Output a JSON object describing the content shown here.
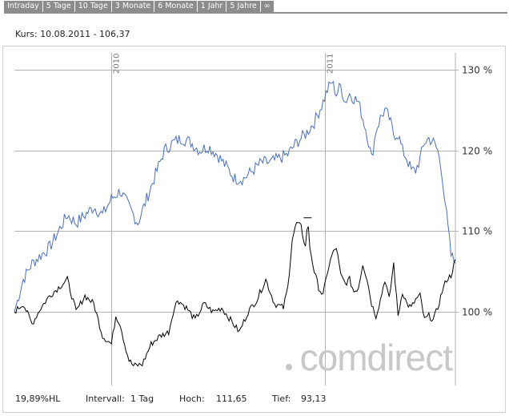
{
  "tabs": [
    {
      "label": "Intraday"
    },
    {
      "label": "5 Tage"
    },
    {
      "label": "10 Tage"
    },
    {
      "label": "3 Monate"
    },
    {
      "label": "6 Monate"
    },
    {
      "label": "1 Jahr"
    },
    {
      "label": "5 Jahre"
    },
    {
      "label": "∞"
    }
  ],
  "header": {
    "kurs": "Kurs: 10.08.2011 - 106,37"
  },
  "footer": {
    "range": "19,89%HL",
    "intervall_label": "Intervall:",
    "intervall_value": "1 Tag",
    "hoch_label": "Hoch:",
    "hoch_value": "111,65",
    "tief_label": "Tief:",
    "tief_value": "93,13"
  },
  "watermark": "comdirect",
  "colors": {
    "blue_series": "#4a6fb5",
    "black_series": "#000000",
    "grid": "#b4b4b4",
    "tab_bg": "#8c8c8c"
  },
  "chart_data": {
    "type": "line",
    "ylim": [
      92,
      132
    ],
    "yticks": [
      {
        "value": 100,
        "label": "100 %"
      },
      {
        "value": 110,
        "label": "110 %"
      },
      {
        "value": 120,
        "label": "120 %"
      },
      {
        "value": 130,
        "label": "130 %"
      }
    ],
    "xticks": [
      {
        "t": 0.22,
        "label": "2010"
      },
      {
        "t": 0.705,
        "label": "2011"
      }
    ],
    "series": [
      {
        "color": "#4a6fb5",
        "points": [
          [
            0,
            100
          ],
          [
            0.02,
            104
          ],
          [
            0.04,
            106
          ],
          [
            0.06,
            107
          ],
          [
            0.08,
            108
          ],
          [
            0.1,
            110
          ],
          [
            0.12,
            112
          ],
          [
            0.14,
            111
          ],
          [
            0.16,
            112
          ],
          [
            0.18,
            113
          ],
          [
            0.2,
            112
          ],
          [
            0.22,
            114
          ],
          [
            0.24,
            115
          ],
          [
            0.26,
            113
          ],
          [
            0.28,
            111
          ],
          [
            0.3,
            114
          ],
          [
            0.32,
            117
          ],
          [
            0.34,
            120
          ],
          [
            0.36,
            121
          ],
          [
            0.38,
            121.5
          ],
          [
            0.4,
            121
          ],
          [
            0.42,
            120
          ],
          [
            0.44,
            120.5
          ],
          [
            0.46,
            119.5
          ],
          [
            0.48,
            118
          ],
          [
            0.5,
            116.5
          ],
          [
            0.52,
            116.5
          ],
          [
            0.54,
            117.5
          ],
          [
            0.56,
            118.5
          ],
          [
            0.58,
            118.5
          ],
          [
            0.6,
            119
          ],
          [
            0.62,
            119.5
          ],
          [
            0.64,
            121
          ],
          [
            0.66,
            122
          ],
          [
            0.68,
            123.5
          ],
          [
            0.7,
            126
          ],
          [
            0.71,
            127.5
          ],
          [
            0.72,
            128.5
          ],
          [
            0.73,
            127
          ],
          [
            0.74,
            128
          ],
          [
            0.75,
            126
          ],
          [
            0.76,
            127
          ],
          [
            0.77,
            126.5
          ],
          [
            0.78,
            126
          ],
          [
            0.79,
            124
          ],
          [
            0.8,
            122
          ],
          [
            0.81,
            119
          ],
          [
            0.82,
            122.5
          ],
          [
            0.83,
            124
          ],
          [
            0.84,
            125
          ],
          [
            0.85,
            124
          ],
          [
            0.86,
            122
          ],
          [
            0.87,
            122
          ],
          [
            0.88,
            120
          ],
          [
            0.89,
            119
          ],
          [
            0.9,
            117.5
          ],
          [
            0.91,
            117.5
          ],
          [
            0.92,
            119
          ],
          [
            0.93,
            121
          ],
          [
            0.94,
            121.5
          ],
          [
            0.95,
            121
          ],
          [
            0.96,
            120
          ],
          [
            0.97,
            117
          ],
          [
            0.98,
            112
          ],
          [
            0.99,
            107
          ],
          [
            1,
            106
          ]
        ]
      },
      {
        "color": "#000000",
        "points": [
          [
            0,
            100
          ],
          [
            0.02,
            101
          ],
          [
            0.04,
            98.5
          ],
          [
            0.06,
            100.5
          ],
          [
            0.08,
            102
          ],
          [
            0.1,
            103
          ],
          [
            0.12,
            104
          ],
          [
            0.14,
            100
          ],
          [
            0.16,
            102
          ],
          [
            0.18,
            101
          ],
          [
            0.2,
            97
          ],
          [
            0.22,
            96
          ],
          [
            0.23,
            99.5
          ],
          [
            0.24,
            98.5
          ],
          [
            0.25,
            96
          ],
          [
            0.26,
            94
          ],
          [
            0.27,
            93.3
          ],
          [
            0.29,
            93.5
          ],
          [
            0.31,
            96
          ],
          [
            0.33,
            97
          ],
          [
            0.35,
            97.5
          ],
          [
            0.36,
            100
          ],
          [
            0.37,
            101.5
          ],
          [
            0.39,
            100.5
          ],
          [
            0.41,
            99
          ],
          [
            0.43,
            101
          ],
          [
            0.45,
            100
          ],
          [
            0.47,
            100.5
          ],
          [
            0.49,
            99
          ],
          [
            0.51,
            97.5
          ],
          [
            0.53,
            100
          ],
          [
            0.55,
            101.5
          ],
          [
            0.57,
            104
          ],
          [
            0.59,
            101
          ],
          [
            0.61,
            100.5
          ],
          [
            0.62,
            103
          ],
          [
            0.63,
            109
          ],
          [
            0.64,
            111
          ],
          [
            0.65,
            110.5
          ],
          [
            0.66,
            108
          ],
          [
            0.665,
            111.5
          ],
          [
            0.67,
            108
          ],
          [
            0.68,
            105
          ],
          [
            0.69,
            103
          ],
          [
            0.7,
            102
          ],
          [
            0.71,
            105
          ],
          [
            0.72,
            107
          ],
          [
            0.73,
            108
          ],
          [
            0.74,
            104.5
          ],
          [
            0.75,
            103.5
          ],
          [
            0.76,
            104
          ],
          [
            0.77,
            102.5
          ],
          [
            0.78,
            103
          ],
          [
            0.79,
            106
          ],
          [
            0.8,
            104
          ],
          [
            0.81,
            101
          ],
          [
            0.82,
            99.5
          ],
          [
            0.83,
            101.5
          ],
          [
            0.84,
            104
          ],
          [
            0.85,
            101.5
          ],
          [
            0.86,
            106
          ],
          [
            0.87,
            99.5
          ],
          [
            0.88,
            102.5
          ],
          [
            0.89,
            101
          ],
          [
            0.9,
            100.5
          ],
          [
            0.91,
            101.5
          ],
          [
            0.92,
            102
          ],
          [
            0.93,
            99
          ],
          [
            0.94,
            99.5
          ],
          [
            0.95,
            99
          ],
          [
            0.96,
            100.5
          ],
          [
            0.97,
            102.5
          ],
          [
            0.98,
            104
          ],
          [
            0.99,
            104.5
          ],
          [
            1,
            106.5
          ]
        ]
      }
    ]
  }
}
